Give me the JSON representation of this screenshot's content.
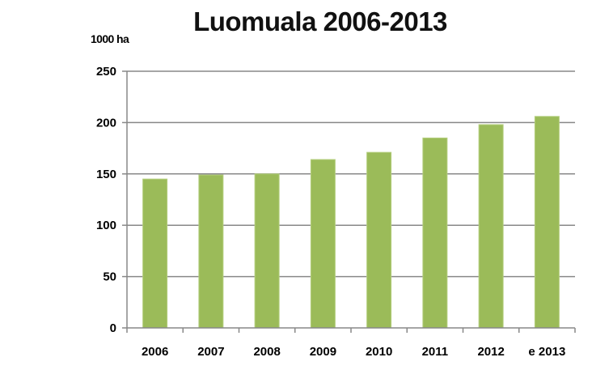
{
  "chart_data": {
    "type": "bar",
    "title": "Luomuala 2006-2013",
    "ylabel": "1000 ha",
    "xlabel": "",
    "categories": [
      "2006",
      "2007",
      "2008",
      "2009",
      "2010",
      "2011",
      "2012",
      "e 2013"
    ],
    "values": [
      145,
      149,
      150,
      164,
      171,
      185,
      198,
      206
    ],
    "ylim": [
      0,
      250
    ],
    "yticks": [
      0,
      50,
      100,
      150,
      200,
      250
    ],
    "grid": true,
    "legend": "none",
    "bar_color": "#9BBB59",
    "bar_edge_color": "#B5CF7F",
    "grid_color": "#888888"
  }
}
